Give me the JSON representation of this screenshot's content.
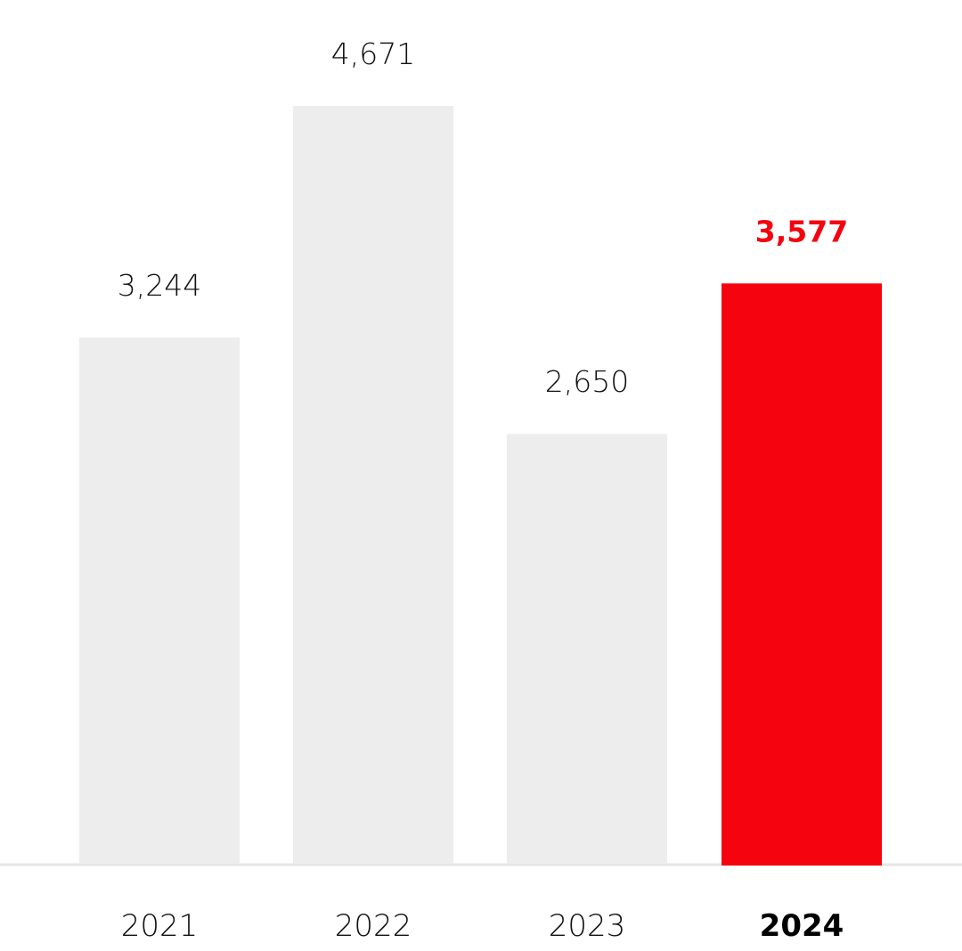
{
  "chart_data": {
    "type": "bar",
    "categories": [
      "2021",
      "2022",
      "2023",
      "2024"
    ],
    "values": [
      3244,
      4671,
      2650,
      3577
    ],
    "value_labels": [
      "3,244",
      "4,671",
      "2,650",
      "3,577"
    ],
    "highlight_index": 3,
    "colors": {
      "bar": "#ededed",
      "highlight": "#f5030f",
      "axis": "#e6e6e6",
      "text": "#111111"
    },
    "ylim": [
      0,
      4671
    ],
    "grid": false,
    "title": "",
    "xlabel": "",
    "ylabel": ""
  }
}
